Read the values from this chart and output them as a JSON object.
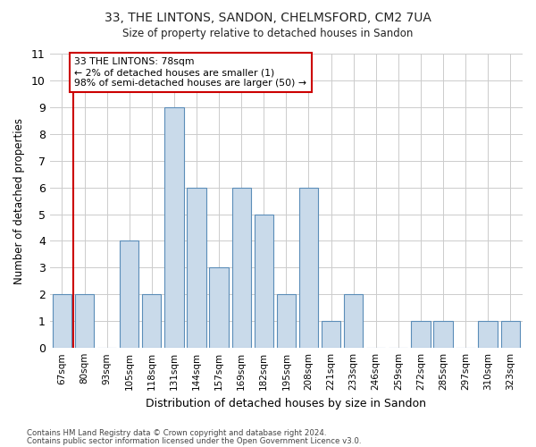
{
  "title": "33, THE LINTONS, SANDON, CHELMSFORD, CM2 7UA",
  "subtitle": "Size of property relative to detached houses in Sandon",
  "xlabel": "Distribution of detached houses by size in Sandon",
  "ylabel": "Number of detached properties",
  "categories": [
    "67sqm",
    "80sqm",
    "93sqm",
    "105sqm",
    "118sqm",
    "131sqm",
    "144sqm",
    "157sqm",
    "169sqm",
    "182sqm",
    "195sqm",
    "208sqm",
    "221sqm",
    "233sqm",
    "246sqm",
    "259sqm",
    "272sqm",
    "285sqm",
    "297sqm",
    "310sqm",
    "323sqm"
  ],
  "values": [
    2,
    2,
    0,
    4,
    2,
    9,
    6,
    3,
    6,
    5,
    2,
    6,
    1,
    2,
    0,
    0,
    1,
    1,
    0,
    1,
    1
  ],
  "highlight_index": 1,
  "bar_color": "#c9daea",
  "bar_edge_color": "#5b8db8",
  "highlight_line_color": "#cc0000",
  "annotation_box_edge": "#cc0000",
  "annotation_lines": [
    "33 THE LINTONS: 78sqm",
    "← 2% of detached houses are smaller (1)",
    "98% of semi-detached houses are larger (50) →"
  ],
  "ylim": [
    0,
    11
  ],
  "yticks": [
    0,
    1,
    2,
    3,
    4,
    5,
    6,
    7,
    8,
    9,
    10,
    11
  ],
  "footer_line1": "Contains HM Land Registry data © Crown copyright and database right 2024.",
  "footer_line2": "Contains public sector information licensed under the Open Government Licence v3.0.",
  "bg_color": "#ffffff",
  "plot_bg_color": "#ffffff",
  "grid_color": "#cccccc"
}
